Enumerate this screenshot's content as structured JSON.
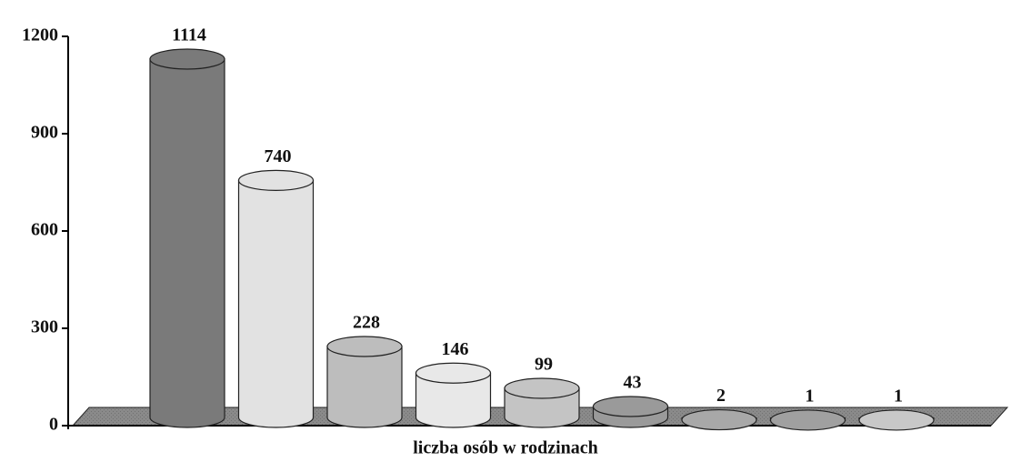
{
  "chart_data": {
    "type": "bar",
    "x_label": "liczba osób w rodzinach",
    "categories": [
      null,
      null,
      null,
      null,
      null,
      null,
      null,
      null,
      null
    ],
    "values": [
      1114,
      740,
      228,
      146,
      99,
      43,
      2,
      1,
      1
    ],
    "colors": [
      "#7a7a7a",
      "#e2e2e2",
      "#bdbdbd",
      "#e8e8e8",
      "#c4c4c4",
      "#9a9a9a",
      "#a8a8a8",
      "#a0a0a0",
      "#c8c8c8"
    ],
    "ylim": [
      0,
      1200
    ],
    "yticks": [
      0,
      300,
      600,
      900,
      1200
    ]
  }
}
